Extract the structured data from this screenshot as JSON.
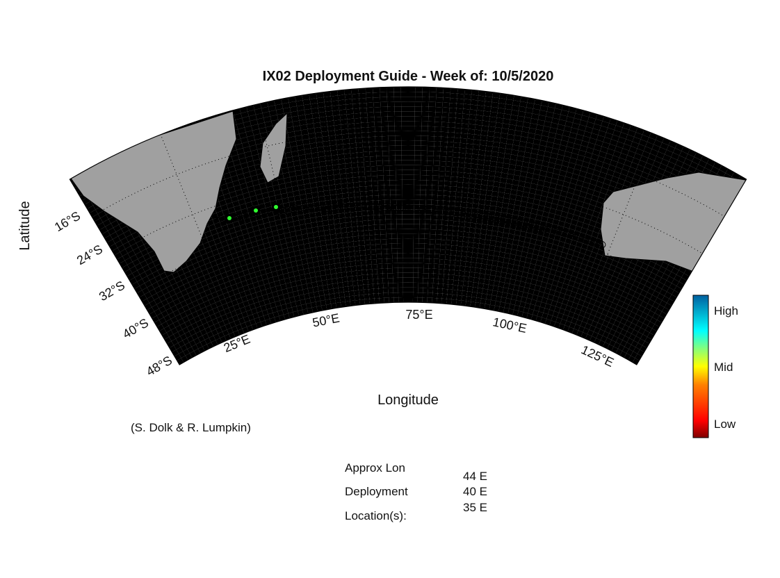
{
  "title": "IX02 Deployment Guide - Week of: 10/5/2020",
  "x_label": "Longitude",
  "y_label": "Latitude",
  "lon_ticks": [
    "25°E",
    "50°E",
    "75°E",
    "100°E",
    "125°E"
  ],
  "lat_ticks": [
    "16°S",
    "24°S",
    "32°S",
    "40°S",
    "48°S"
  ],
  "colorbar": {
    "labels": [
      "High",
      "Mid",
      "Low"
    ]
  },
  "credit": "(S. Dolk & R. Lumpkin)",
  "deployment": {
    "labels": [
      "Approx Lon",
      "Deployment",
      "Location(s):"
    ],
    "values": [
      "44 E",
      "40 E",
      "35 E"
    ]
  }
}
